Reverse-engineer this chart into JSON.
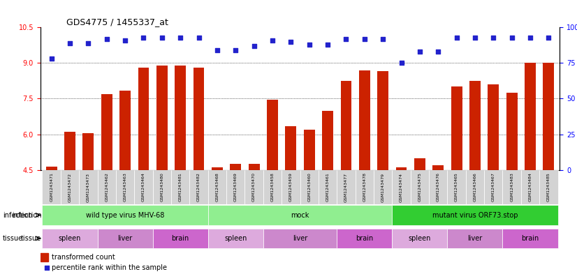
{
  "title": "GDS4775 / 1455337_at",
  "samples": [
    "GSM1243471",
    "GSM1243472",
    "GSM1243473",
    "GSM1243462",
    "GSM1243463",
    "GSM1243464",
    "GSM1243480",
    "GSM1243481",
    "GSM1243482",
    "GSM1243468",
    "GSM1243469",
    "GSM1243470",
    "GSM1243458",
    "GSM1243459",
    "GSM1243460",
    "GSM1243461",
    "GSM1243477",
    "GSM1243478",
    "GSM1243479",
    "GSM1243474",
    "GSM1243475",
    "GSM1243476",
    "GSM1243465",
    "GSM1243466",
    "GSM1243467",
    "GSM1243483",
    "GSM1243484",
    "GSM1243485"
  ],
  "bar_values": [
    4.65,
    6.1,
    6.05,
    7.7,
    7.85,
    8.8,
    8.9,
    8.9,
    8.8,
    4.6,
    4.75,
    4.75,
    7.45,
    6.35,
    6.2,
    7.0,
    8.25,
    8.7,
    8.65,
    4.6,
    5.0,
    4.7,
    8.0,
    8.25,
    8.1,
    7.75,
    9.0,
    9.0
  ],
  "percentile_values": [
    78,
    89,
    89,
    92,
    91,
    93,
    93,
    93,
    93,
    84,
    84,
    87,
    91,
    90,
    88,
    88,
    92,
    92,
    92,
    75,
    83,
    83,
    93,
    93,
    93,
    93,
    93,
    93
  ],
  "ylim_left": [
    4.5,
    10.5
  ],
  "ylim_right": [
    0,
    100
  ],
  "yticks_left": [
    4.5,
    6.0,
    7.5,
    9.0,
    10.5
  ],
  "yticks_right": [
    0,
    25,
    50,
    75,
    100
  ],
  "bar_color": "#cc2200",
  "dot_color": "#2222cc",
  "infection_groups": [
    {
      "label": "wild type virus MHV-68",
      "start": 0,
      "end": 8,
      "color": "#90ee90"
    },
    {
      "label": "mock",
      "start": 9,
      "end": 18,
      "color": "#90ee90"
    },
    {
      "label": "mutant virus ORF73.stop",
      "start": 19,
      "end": 27,
      "color": "#32cd32"
    }
  ],
  "tissue_groups": [
    {
      "label": "spleen",
      "start": 0,
      "end": 2,
      "color": "#ddaadd"
    },
    {
      "label": "liver",
      "start": 3,
      "end": 5,
      "color": "#cc88cc"
    },
    {
      "label": "brain",
      "start": 6,
      "end": 8,
      "color": "#cc66cc"
    },
    {
      "label": "spleen",
      "start": 9,
      "end": 11,
      "color": "#ddaadd"
    },
    {
      "label": "liver",
      "start": 12,
      "end": 15,
      "color": "#cc88cc"
    },
    {
      "label": "brain",
      "start": 16,
      "end": 18,
      "color": "#cc66cc"
    },
    {
      "label": "spleen",
      "start": 19,
      "end": 21,
      "color": "#ddaadd"
    },
    {
      "label": "liver",
      "start": 22,
      "end": 24,
      "color": "#cc88cc"
    },
    {
      "label": "brain",
      "start": 25,
      "end": 27,
      "color": "#cc66cc"
    }
  ],
  "legend_items": [
    {
      "label": "transformed count",
      "color": "#cc2200",
      "marker": "s"
    },
    {
      "label": "percentile rank within the sample",
      "color": "#2222cc",
      "marker": "s"
    }
  ],
  "bg_color": "#ffffff",
  "tick_label_bg": "#dddddd"
}
